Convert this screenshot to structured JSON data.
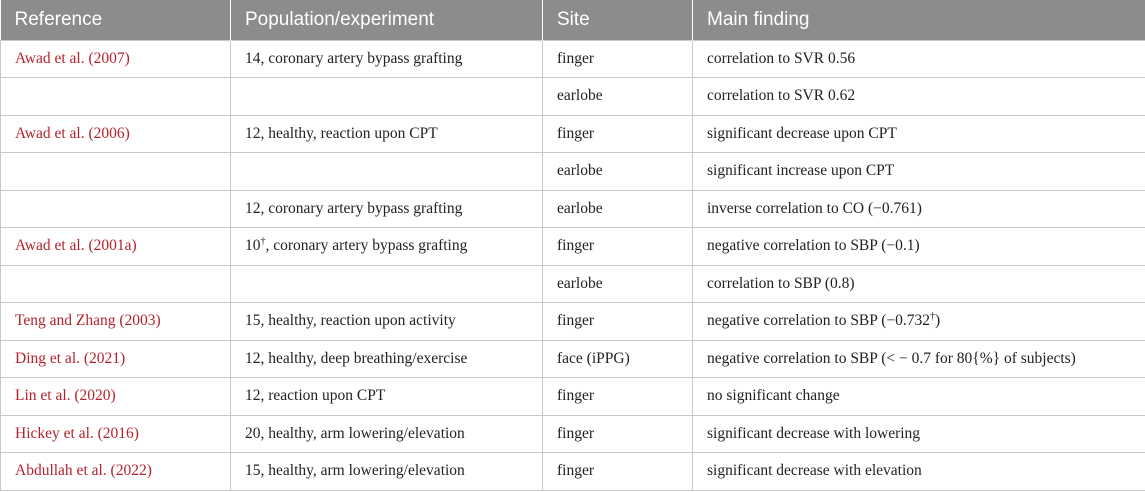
{
  "table": {
    "headers": [
      "Reference",
      "Population/experiment",
      "Site",
      "Main finding"
    ],
    "rows": [
      {
        "reference": "Awad et al. (2007)",
        "population": "14, coronary artery bypass grafting",
        "site": "finger",
        "finding": "correlation to SVR 0.56"
      },
      {
        "reference": "",
        "population": "",
        "site": "earlobe",
        "finding": "correlation to SVR 0.62"
      },
      {
        "reference": "Awad et al. (2006)",
        "population": "12, healthy, reaction upon CPT",
        "site": "finger",
        "finding": "significant decrease upon CPT"
      },
      {
        "reference": "",
        "population": "",
        "site": "earlobe",
        "finding": "significant increase upon CPT"
      },
      {
        "reference": "",
        "population": "12, coronary artery bypass grafting",
        "site": "earlobe",
        "finding": "inverse correlation to CO (−0.761)"
      },
      {
        "reference": "Awad et al. (2001a)",
        "population_pre": "10",
        "population_sup": "†",
        "population_post": ", coronary artery bypass grafting",
        "site": "finger",
        "finding": "negative correlation to SBP (−0.1)"
      },
      {
        "reference": "",
        "population": "",
        "site": "earlobe",
        "finding": "correlation to SBP (0.8)"
      },
      {
        "reference": "Teng and Zhang (2003)",
        "population": "15, healthy, reaction upon activity",
        "site": "finger",
        "finding_pre": "negative correlation to SBP (−0.732",
        "finding_sup": "†",
        "finding_post": ")"
      },
      {
        "reference": "Ding et al. (2021)",
        "population": "12, healthy, deep breathing/exercise",
        "site": "face (iPPG)",
        "finding": "negative correlation to SBP (< − 0.7 for 80{%} of subjects)"
      },
      {
        "reference": "Lin et al. (2020)",
        "population": "12, reaction upon CPT",
        "site": "finger",
        "finding": "no significant change"
      },
      {
        "reference": "Hickey et al. (2016)",
        "population": "20, healthy, arm lowering/elevation",
        "site": "finger",
        "finding": "significant decrease with lowering"
      },
      {
        "reference": "Abdullah et al. (2022)",
        "population": "15, healthy, arm lowering/elevation",
        "site": "finger",
        "finding": "significant decrease with elevation"
      }
    ]
  },
  "colors": {
    "header_bg": "#8c8c8c",
    "header_text": "#ffffff",
    "reference_link": "#b5222d",
    "border": "#c8c8c8"
  }
}
